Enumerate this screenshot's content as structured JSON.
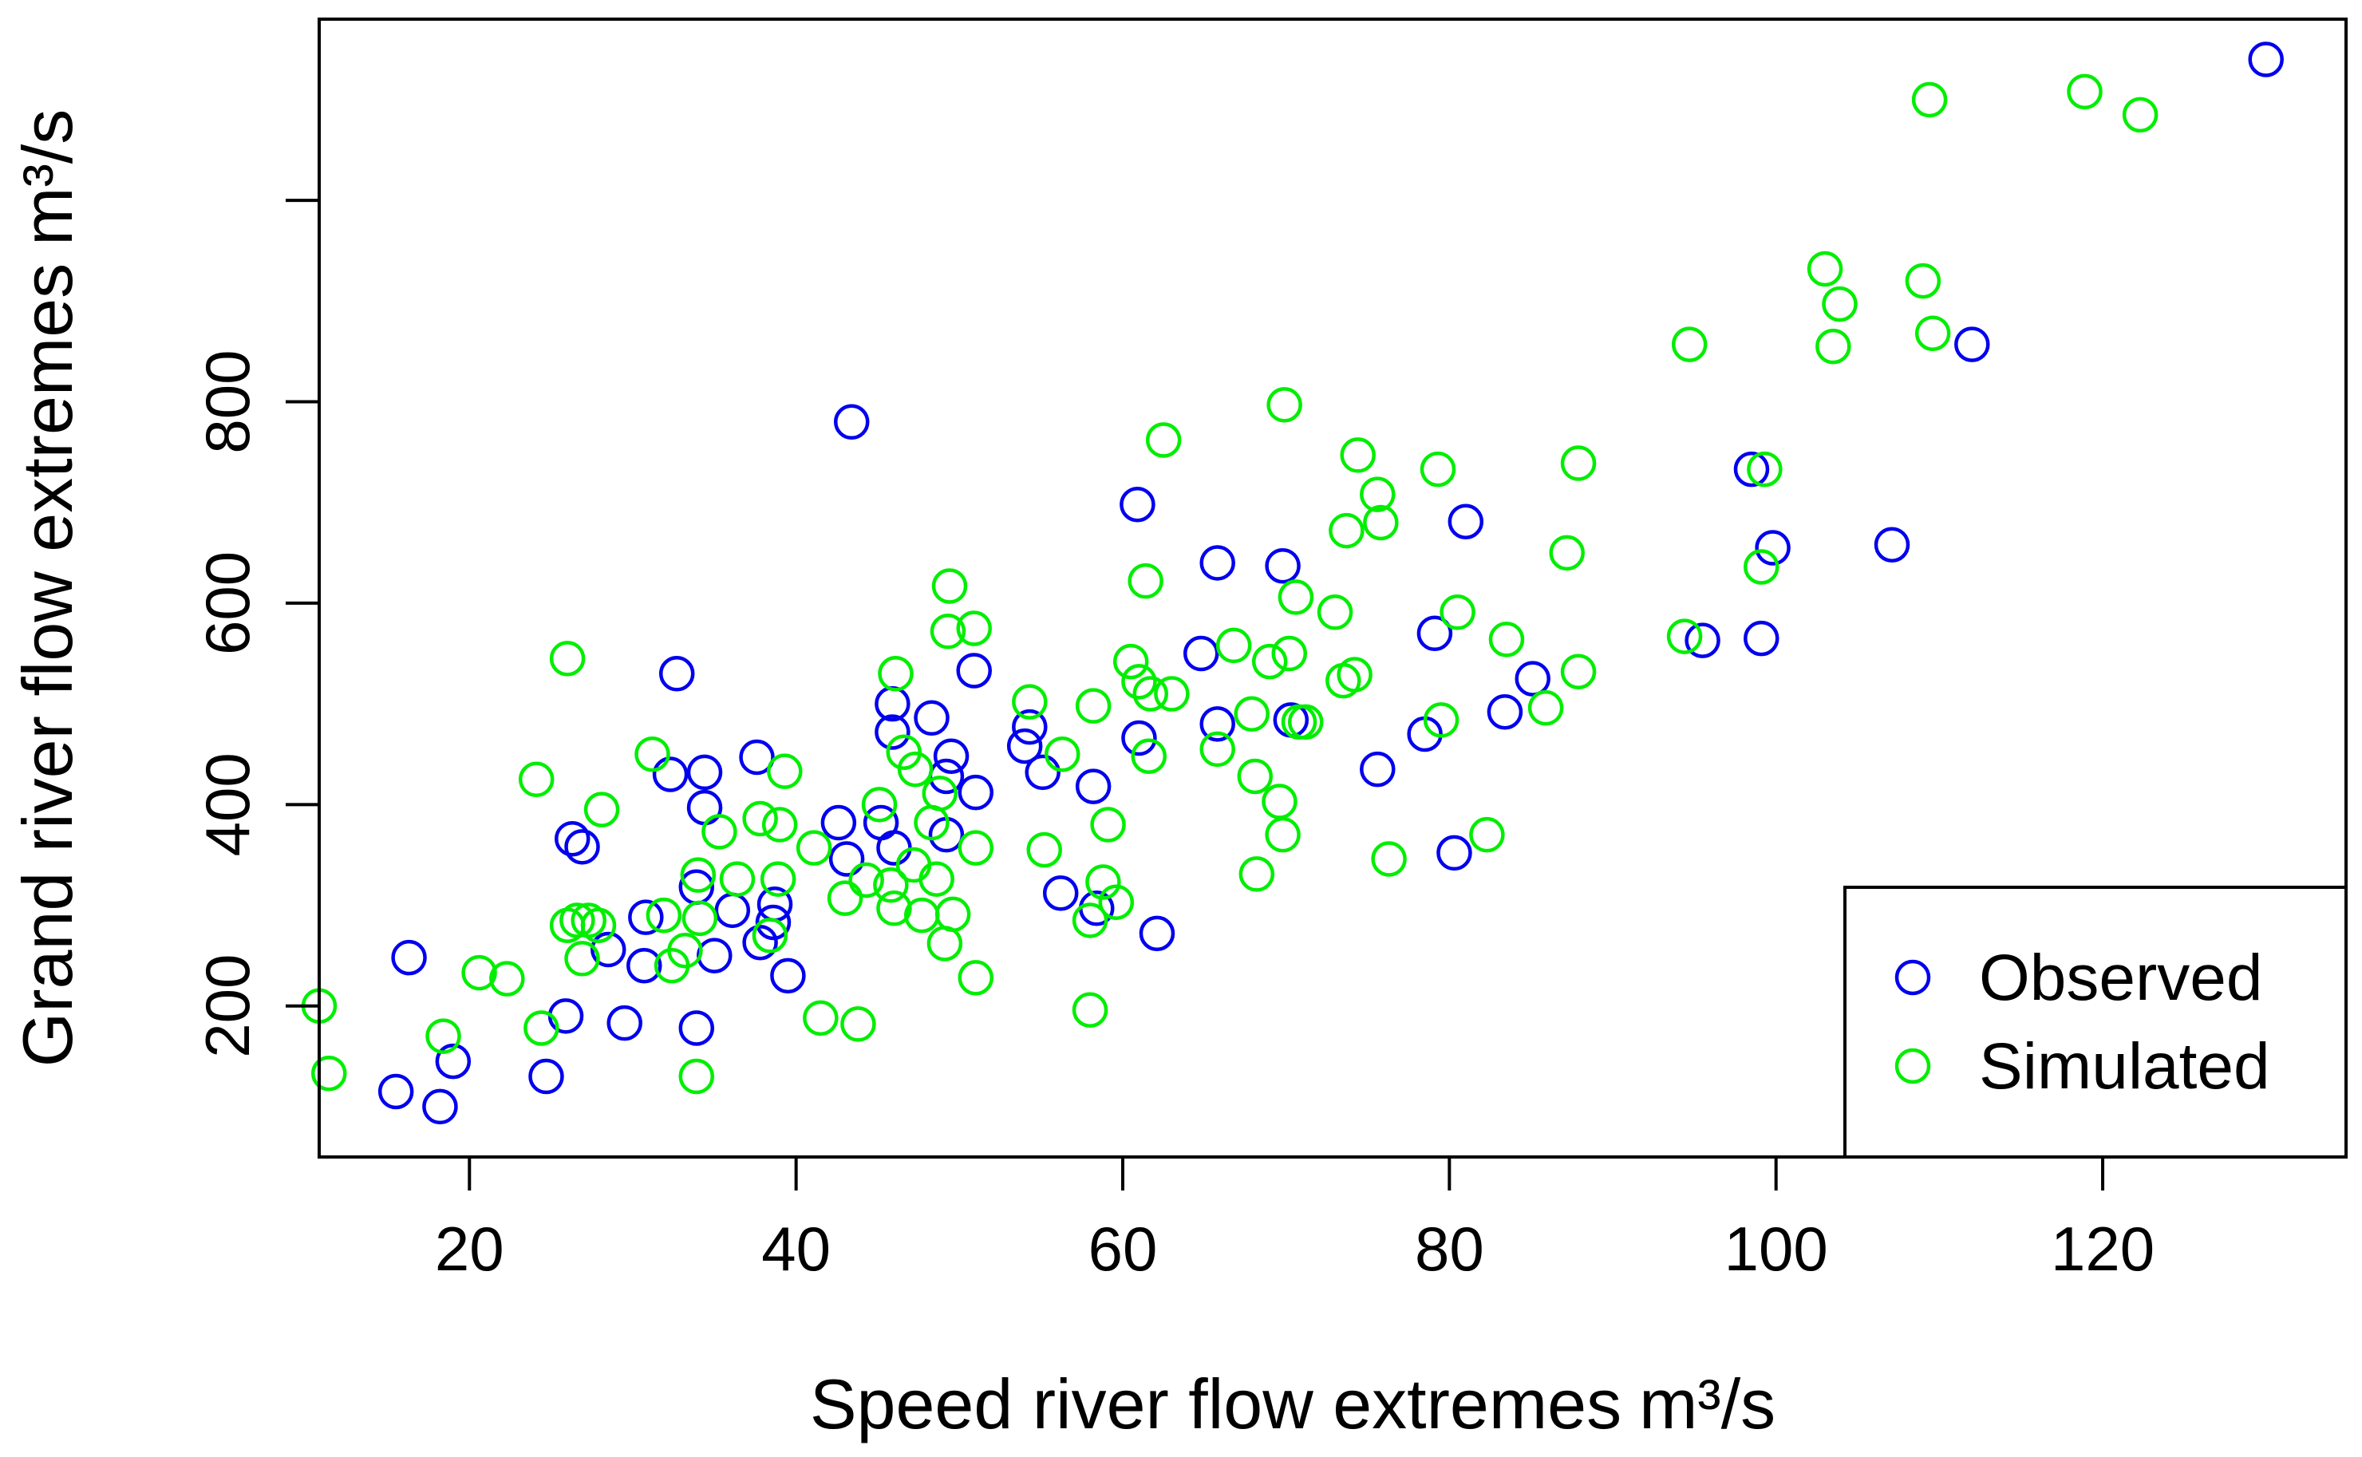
{
  "chart_data": {
    "type": "scatter",
    "title": "",
    "xlabel": "Speed river flow extremes",
    "xlabel_unit": "m³/s",
    "ylabel": "Grand river flow extremes",
    "ylabel_unit": "m³/s",
    "xlim": [
      10.8,
      134.9
    ],
    "ylim": [
      50,
      1180
    ],
    "xticks": [
      20,
      40,
      60,
      80,
      100,
      120
    ],
    "yticks": [
      200,
      400,
      600,
      800,
      1000
    ],
    "ytick_labels": [
      "200",
      "400",
      "600",
      "800",
      ""
    ],
    "grid": false,
    "legend_position": "bottom-right",
    "colors": {
      "observed": "#0000ee",
      "simulated": "#00ee00",
      "axis": "#000000"
    },
    "series": [
      {
        "name": "Observed",
        "marker": "open-circle",
        "color": "#0000ee",
        "points": [
          [
            15.5,
            115
          ],
          [
            16.3,
            248
          ],
          [
            18.2,
            100
          ],
          [
            19.0,
            145
          ],
          [
            24.7,
            130
          ],
          [
            25.9,
            190
          ],
          [
            26.3,
            366
          ],
          [
            26.9,
            358
          ],
          [
            28.5,
            256
          ],
          [
            29.5,
            183
          ],
          [
            30.7,
            240
          ],
          [
            30.8,
            288
          ],
          [
            32.3,
            430
          ],
          [
            32.7,
            530
          ],
          [
            33.9,
            318
          ],
          [
            34.4,
            432
          ],
          [
            34.4,
            397
          ],
          [
            33.9,
            178
          ],
          [
            35.0,
            250
          ],
          [
            36.1,
            295
          ],
          [
            37.6,
            447
          ],
          [
            37.8,
            263
          ],
          [
            38.6,
            283
          ],
          [
            38.7,
            301
          ],
          [
            39.5,
            230
          ],
          [
            42.6,
            382
          ],
          [
            43.1,
            346
          ],
          [
            43.4,
            780
          ],
          [
            45.2,
            382
          ],
          [
            46.0,
            357
          ],
          [
            45.9,
            500
          ],
          [
            45.9,
            472
          ],
          [
            48.3,
            486
          ],
          [
            49.5,
            448
          ],
          [
            49.2,
            428
          ],
          [
            49.2,
            370
          ],
          [
            50.9,
            533
          ],
          [
            51.0,
            412
          ],
          [
            54.0,
            458
          ],
          [
            54.3,
            477
          ],
          [
            55.1,
            432
          ],
          [
            56.2,
            312
          ],
          [
            58.2,
            418
          ],
          [
            58.4,
            297
          ],
          [
            60.9,
            698
          ],
          [
            61.0,
            466
          ],
          [
            62.1,
            272
          ],
          [
            64.8,
            550
          ],
          [
            65.8,
            640
          ],
          [
            65.8,
            480
          ],
          [
            69.8,
            637
          ],
          [
            70.3,
            484
          ],
          [
            75.6,
            435
          ],
          [
            78.5,
            470
          ],
          [
            79.1,
            570
          ],
          [
            80.3,
            352
          ],
          [
            81.0,
            681
          ],
          [
            83.4,
            492
          ],
          [
            85.1,
            525
          ],
          [
            95.5,
            563
          ],
          [
            98.5,
            733
          ],
          [
            99.1,
            565
          ],
          [
            99.8,
            655
          ],
          [
            107.1,
            658
          ],
          [
            112.0,
            857
          ],
          [
            130.0,
            1140
          ]
        ]
      },
      {
        "name": "Simulated",
        "marker": "open-circle",
        "color": "#00ee00",
        "points": [
          [
            10.8,
            200
          ],
          [
            11.4,
            133
          ],
          [
            18.4,
            170
          ],
          [
            20.6,
            233
          ],
          [
            22.3,
            227
          ],
          [
            24.1,
            425
          ],
          [
            24.4,
            178
          ],
          [
            26.0,
            545
          ],
          [
            26.0,
            280
          ],
          [
            26.6,
            285
          ],
          [
            26.9,
            247
          ],
          [
            27.3,
            285
          ],
          [
            27.9,
            280
          ],
          [
            28.1,
            395
          ],
          [
            31.2,
            450
          ],
          [
            31.9,
            290
          ],
          [
            32.4,
            240
          ],
          [
            33.2,
            255
          ],
          [
            33.9,
            130
          ],
          [
            34.0,
            330
          ],
          [
            34.1,
            287
          ],
          [
            35.3,
            373
          ],
          [
            36.4,
            326
          ],
          [
            37.8,
            386
          ],
          [
            38.4,
            270
          ],
          [
            38.9,
            326
          ],
          [
            39.0,
            380
          ],
          [
            39.3,
            433
          ],
          [
            41.1,
            357
          ],
          [
            41.5,
            188
          ],
          [
            43.0,
            307
          ],
          [
            43.8,
            182
          ],
          [
            44.3,
            325
          ],
          [
            45.1,
            400
          ],
          [
            45.8,
            320
          ],
          [
            46.0,
            297
          ],
          [
            46.1,
            530
          ],
          [
            46.6,
            452
          ],
          [
            47.2,
            340
          ],
          [
            47.3,
            435
          ],
          [
            47.7,
            290
          ],
          [
            48.3,
            382
          ],
          [
            48.6,
            326
          ],
          [
            48.8,
            411
          ],
          [
            49.1,
            262
          ],
          [
            49.3,
            572
          ],
          [
            49.4,
            617
          ],
          [
            49.6,
            291
          ],
          [
            50.9,
            575
          ],
          [
            51.0,
            228
          ],
          [
            51.0,
            357
          ],
          [
            54.3,
            502
          ],
          [
            55.2,
            355
          ],
          [
            56.3,
            450
          ],
          [
            58.0,
            285
          ],
          [
            58.0,
            196
          ],
          [
            58.2,
            498
          ],
          [
            58.8,
            323
          ],
          [
            59.1,
            380
          ],
          [
            59.6,
            303
          ],
          [
            60.5,
            542
          ],
          [
            61.0,
            522
          ],
          [
            61.4,
            622
          ],
          [
            61.6,
            448
          ],
          [
            61.7,
            510
          ],
          [
            62.5,
            762
          ],
          [
            63.0,
            510
          ],
          [
            65.8,
            455
          ],
          [
            66.8,
            558
          ],
          [
            67.9,
            490
          ],
          [
            68.1,
            428
          ],
          [
            68.2,
            331
          ],
          [
            69.0,
            542
          ],
          [
            69.6,
            403
          ],
          [
            69.8,
            370
          ],
          [
            69.9,
            797
          ],
          [
            70.2,
            550
          ],
          [
            70.6,
            606
          ],
          [
            70.8,
            482
          ],
          [
            71.2,
            482
          ],
          [
            73.0,
            591
          ],
          [
            73.5,
            523
          ],
          [
            73.7,
            672
          ],
          [
            74.2,
            529
          ],
          [
            74.4,
            747
          ],
          [
            75.6,
            708
          ],
          [
            75.8,
            680
          ],
          [
            76.3,
            346
          ],
          [
            79.3,
            733
          ],
          [
            79.5,
            484
          ],
          [
            80.5,
            591
          ],
          [
            82.3,
            370
          ],
          [
            83.5,
            564
          ],
          [
            85.9,
            496
          ],
          [
            87.2,
            650
          ],
          [
            87.9,
            739
          ],
          [
            87.9,
            532
          ],
          [
            94.4,
            567
          ],
          [
            94.7,
            857
          ],
          [
            99.1,
            636
          ],
          [
            99.3,
            733
          ],
          [
            103.0,
            932
          ],
          [
            103.5,
            855
          ],
          [
            103.9,
            897
          ],
          [
            109.0,
            920
          ],
          [
            109.4,
            1100
          ],
          [
            109.6,
            868
          ],
          [
            118.9,
            1108
          ],
          [
            122.3,
            1085
          ]
        ]
      }
    ]
  }
}
